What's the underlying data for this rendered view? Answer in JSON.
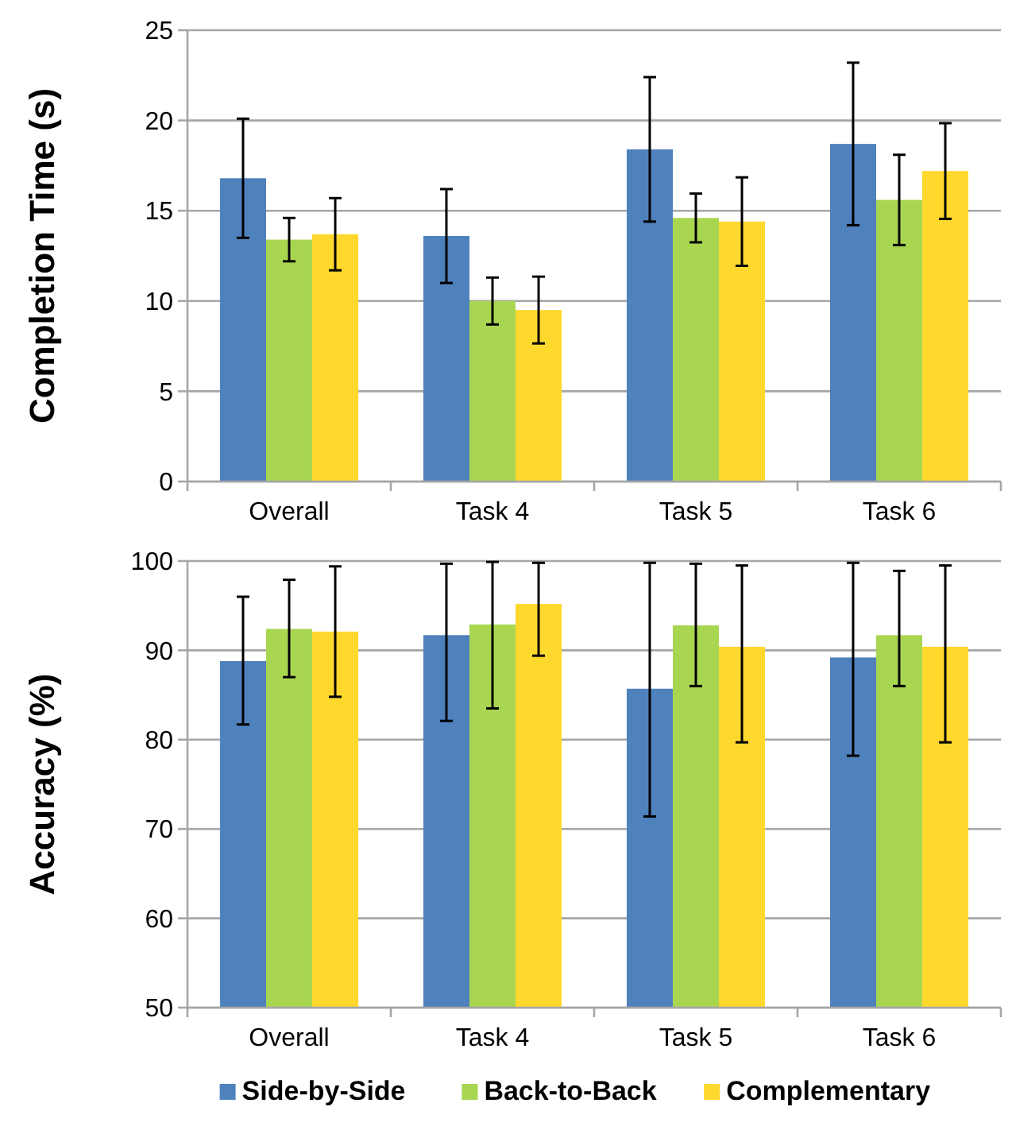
{
  "chart_data": [
    {
      "type": "bar",
      "ylabel": "Completion Time (s)",
      "categories": [
        "Overall",
        "Task 4",
        "Task 5",
        "Task 6"
      ],
      "ylim": [
        0,
        25
      ],
      "yticks": [
        0,
        5,
        10,
        15,
        20,
        25
      ],
      "grid": "y",
      "series": [
        {
          "color": "#4f81bd",
          "values": [
            16.8,
            13.6,
            18.4,
            18.7
          ],
          "errors": [
            3.3,
            2.6,
            4.0,
            4.5
          ]
        },
        {
          "color": "#a9d651",
          "values": [
            13.4,
            10.0,
            14.6,
            15.6
          ],
          "errors": [
            1.2,
            1.3,
            1.35,
            2.5
          ]
        },
        {
          "color": "#ffd82d",
          "values": [
            13.7,
            9.5,
            14.4,
            17.2
          ],
          "errors": [
            2.0,
            1.85,
            2.45,
            2.65
          ]
        }
      ]
    },
    {
      "type": "bar",
      "ylabel": "Accuracy (%)",
      "categories": [
        "Overall",
        "Task 4",
        "Task 5",
        "Task 6"
      ],
      "ylim": [
        50,
        100
      ],
      "yticks": [
        50,
        60,
        70,
        80,
        90,
        100
      ],
      "grid": "y",
      "legend": "bottom",
      "series": [
        {
          "name": "Side-by-Side",
          "color": "#4f81bd",
          "values": [
            88.8,
            91.7,
            85.7,
            89.2
          ],
          "errors": [
            [
              81.7,
              96.0
            ],
            [
              82.1,
              99.7
            ],
            [
              71.4,
              99.8
            ],
            [
              78.2,
              99.8
            ]
          ]
        },
        {
          "name": "Back-to-Back",
          "color": "#a9d651",
          "values": [
            92.4,
            92.9,
            92.8,
            91.7
          ],
          "errors": [
            [
              87.0,
              97.9
            ],
            [
              83.5,
              99.9
            ],
            [
              86.0,
              99.7
            ],
            [
              86.0,
              98.9
            ]
          ]
        },
        {
          "name": "Complementary",
          "color": "#ffd82d",
          "values": [
            92.1,
            95.2,
            90.4,
            90.4
          ],
          "errors": [
            [
              84.8,
              99.4
            ],
            [
              89.4,
              99.8
            ],
            [
              79.7,
              99.5
            ],
            [
              79.7,
              99.5
            ]
          ]
        }
      ]
    }
  ]
}
